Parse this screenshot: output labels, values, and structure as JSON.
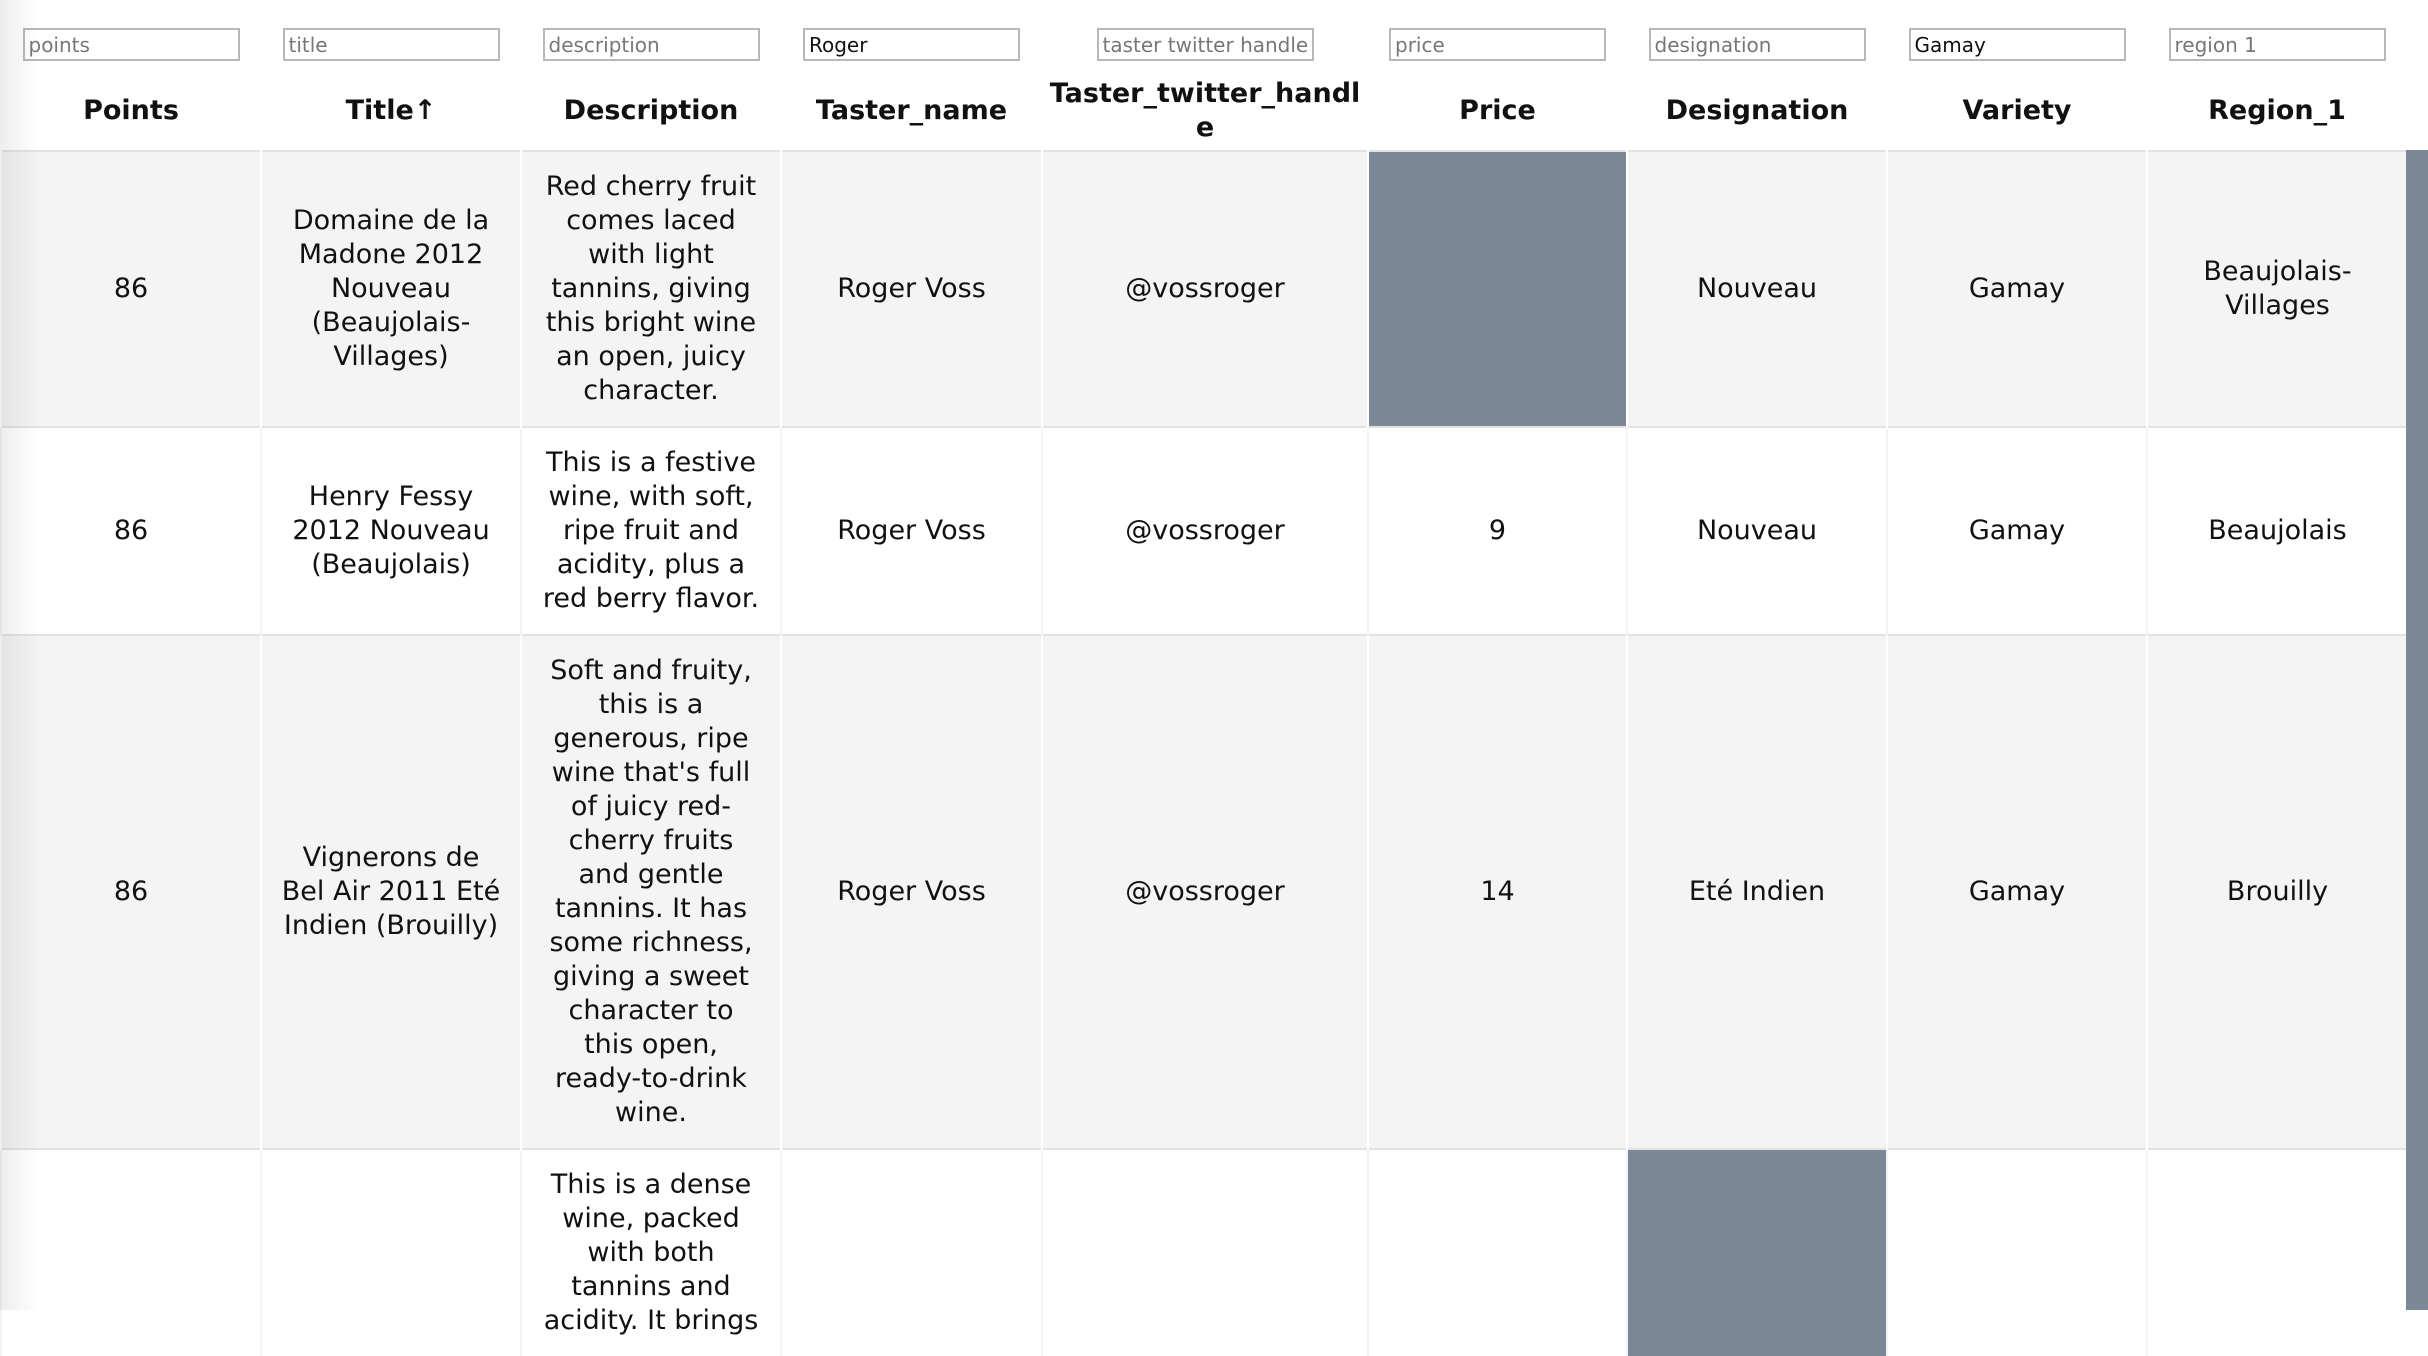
{
  "filters": [
    {
      "placeholder": "points"
    },
    {
      "placeholder": "title"
    },
    {
      "placeholder": "description"
    },
    {
      "value": "Roger"
    },
    {
      "placeholder": "taster twitter handle"
    },
    {
      "placeholder": "price"
    },
    {
      "placeholder": "designation"
    },
    {
      "value": "Gamay"
    },
    {
      "placeholder": "region 1"
    }
  ],
  "headers": [
    "Points",
    "Title↑",
    "Description",
    "Taster_name",
    "Taster_twitter_handle",
    "Price",
    "Designation",
    "Variety",
    "Region_1"
  ],
  "rows": [
    {
      "points": 86,
      "title": "Domaine de la Madone 2012 Nouveau (Beaujolais-Villages)",
      "description": "Red cherry fruit comes laced with light tannins, giving this bright wine an open, juicy character.",
      "taster_name": "Roger Voss",
      "taster_twitter_handle": "@vossroger",
      "price": null,
      "designation": "Nouveau",
      "variety": "Gamay",
      "region_1": "Beaujolais-Villages"
    },
    {
      "points": 86,
      "title": "Henry Fessy 2012 Nouveau (Beaujolais)",
      "description": "This is a festive wine, with soft, ripe fruit and acidity, plus a red berry flavor.",
      "taster_name": "Roger Voss",
      "taster_twitter_handle": "@vossroger",
      "price": 9,
      "designation": "Nouveau",
      "variety": "Gamay",
      "region_1": "Beaujolais"
    },
    {
      "points": 86,
      "title": "Vignerons de Bel Air 2011 Eté Indien (Brouilly)",
      "description": "Soft and fruity, this is a generous, ripe wine that's full of juicy red-cherry fruits and gentle tannins. It has some richness, giving a sweet character to this open, ready-to-drink wine.",
      "taster_name": "Roger Voss",
      "taster_twitter_handle": "@vossroger",
      "price": 14,
      "designation": "Eté Indien",
      "variety": "Gamay",
      "region_1": "Brouilly"
    },
    {
      "description": "This is a dense wine, packed with both tannins and acidity. It brings",
      "designation": null
    }
  ]
}
